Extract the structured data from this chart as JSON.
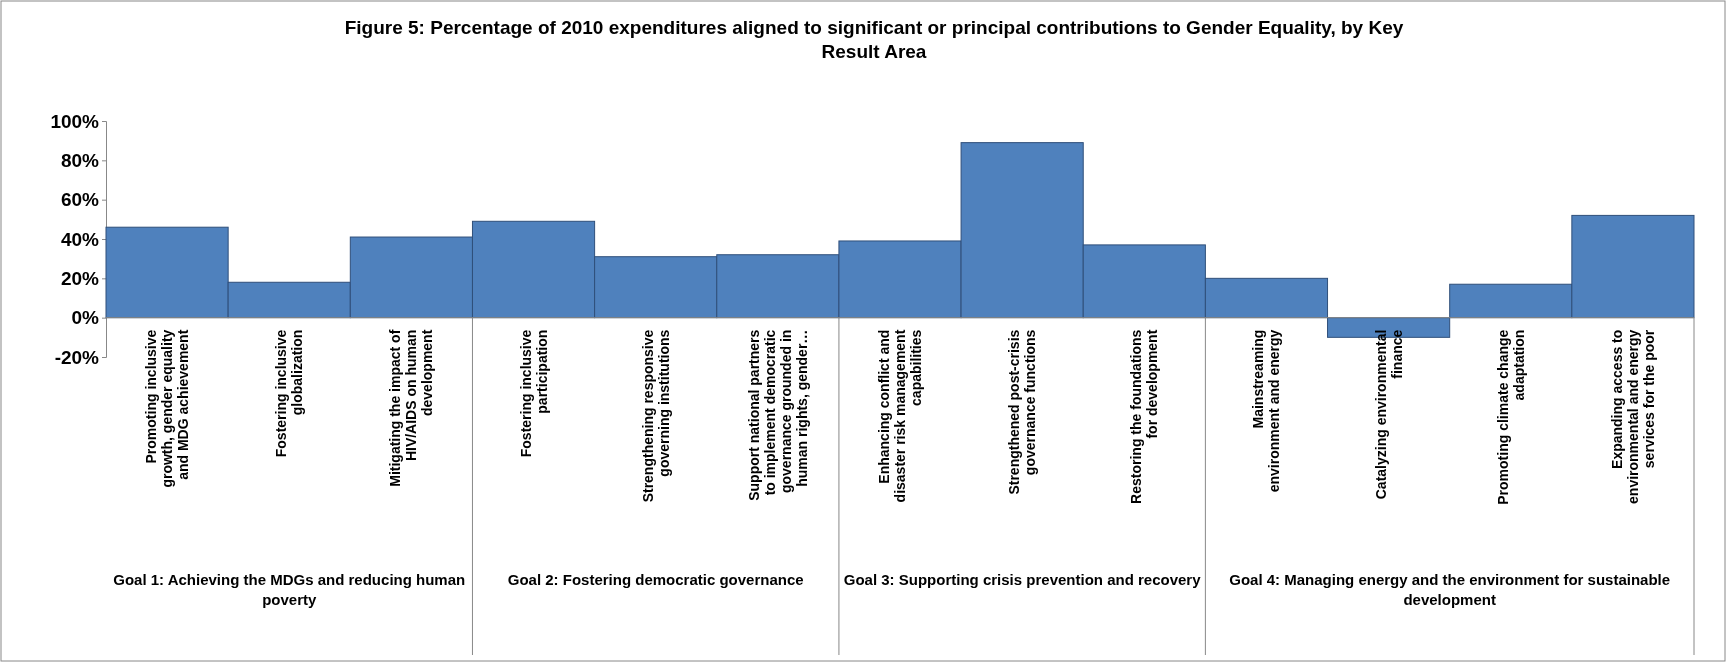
{
  "chart_data": {
    "type": "bar",
    "title": "Figure 5:  Percentage of 2010 expenditures aligned to significant or principal contributions to Gender Equality, by Key Result Area",
    "categories": [
      "Promoting inclusive growth, gender equality and MDG achievement",
      "Fostering inclusive globalization",
      "Mitigating the impact of HIV/AIDS on human development",
      "Fostering inclusive participation",
      "Strengthening responsive governing institutions",
      "Support national partners to implement democratic governance grounded in human rights, gender…",
      "Enhancing conflict and disaster risk management capabilities",
      "Strengthened post-crisis governance functions",
      "Restoring the foundations for development",
      "Mainstreaming environment and energy",
      "Catalyzing environmental finance",
      "Promoting climate change adaptation",
      "Expanding access to environmental and energy services for the poor"
    ],
    "values": [
      46,
      18,
      41,
      49,
      31,
      32,
      39,
      89,
      37,
      20,
      -10,
      17,
      52
    ],
    "color": "#4f81bd",
    "ylim": [
      -20,
      100
    ],
    "yticks": [
      {
        "value": -20,
        "label": "-20%"
      },
      {
        "value": 0,
        "label": "0%"
      },
      {
        "value": 20,
        "label": "20%"
      },
      {
        "value": 40,
        "label": "40%"
      },
      {
        "value": 60,
        "label": "60%"
      },
      {
        "value": 80,
        "label": "80%"
      },
      {
        "value": 100,
        "label": "100%"
      }
    ],
    "grid": false,
    "annotations": [
      "Goal 1: Achieving the MDGs and reducing human poverty",
      "Goal 2: Fostering democratic governance",
      "Goal 3: Supporting crisis prevention and recovery",
      "Goal 4: Managing energy and the environment for sustainable development"
    ]
  }
}
